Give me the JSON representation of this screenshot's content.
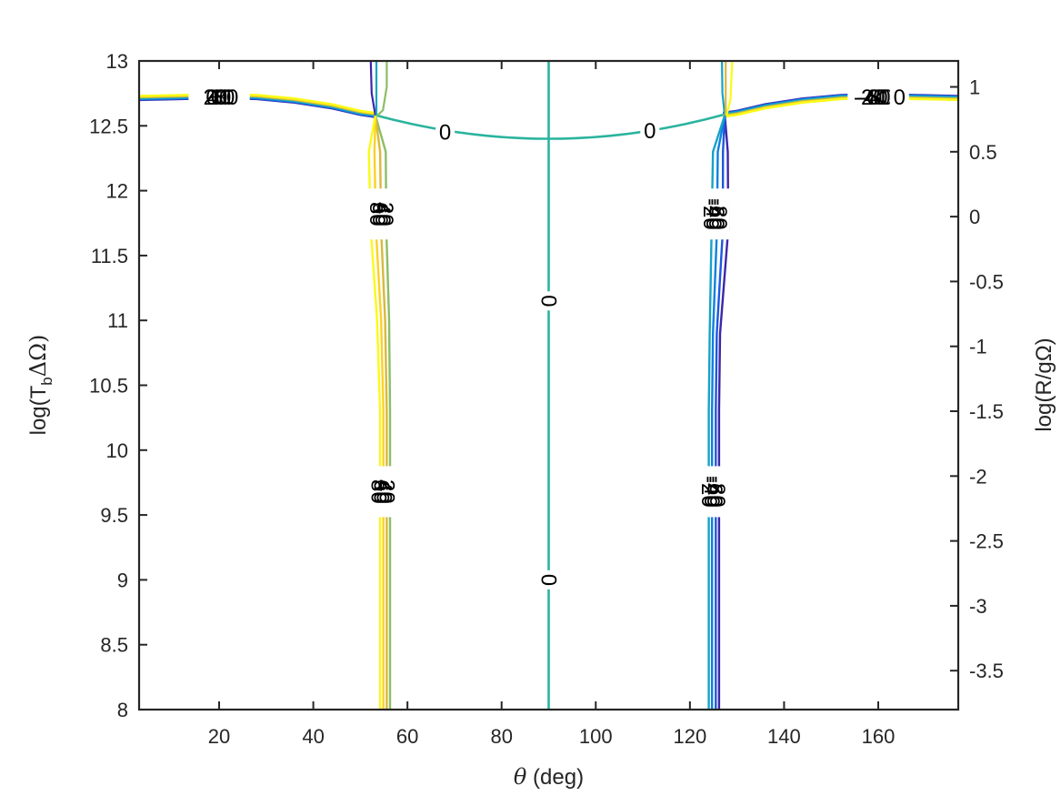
{
  "chart_data": {
    "type": "contour",
    "xlabel_symbol": "θ",
    "xlabel_rest": " (deg)",
    "ylabel_left": "log(TbΔΩ)",
    "ylabel_left_parts": {
      "pre": "log(T",
      "sub": "b",
      "post": "ΔΩ)"
    },
    "ylabel_right": "log(R/gΩ)",
    "xlim": [
      3,
      177
    ],
    "ylim": [
      8,
      13
    ],
    "ylim_right": [
      -3.8,
      1.2
    ],
    "xticks": [
      20,
      40,
      60,
      80,
      100,
      120,
      140,
      160
    ],
    "yticks": [
      8,
      8.5,
      9,
      9.5,
      10,
      10.5,
      11,
      11.5,
      12,
      12.5,
      13
    ],
    "yticks_right": [
      -3.5,
      -3,
      -2.5,
      -2,
      -1.5,
      -1,
      -0.5,
      0,
      0.5,
      1
    ],
    "xtick_labels": [
      "20",
      "40",
      "60",
      "80",
      "100",
      "120",
      "140",
      "160"
    ],
    "ytick_labels": [
      "8",
      "8.5",
      "9",
      "9.5",
      "10",
      "10.5",
      "11",
      "11.5",
      "12",
      "12.5",
      "13"
    ],
    "ytick_right_labels": [
      "-3.5",
      "-3",
      "-2.5",
      "-2",
      "-1.5",
      "-1",
      "-0.5",
      "0",
      "0.5",
      "1"
    ],
    "contour_levels": [
      -80,
      -60,
      -40,
      -20,
      0,
      20,
      40,
      60,
      80
    ],
    "level_colors": [
      "#3e26a8",
      "#1b58e1",
      "#0e80e0",
      "#17a3c6",
      "#2ab49e",
      "#8bbe66",
      "#d8b93b",
      "#fbd126",
      "#f9fb15"
    ],
    "contour_lines": [
      {
        "level": 0,
        "description": "vertical line at theta=90",
        "x": [
          90,
          90
        ],
        "y": [
          8,
          13
        ]
      },
      {
        "level": 0,
        "description": "dip between lobes",
        "x": [
          53,
          60,
          70,
          80,
          90,
          100,
          110,
          120,
          127
        ],
        "y": [
          12.58,
          12.52,
          12.46,
          12.42,
          12.4,
          12.42,
          12.46,
          12.52,
          12.58
        ]
      },
      {
        "level": "±20..±80",
        "description": "near-horizontal band at top",
        "x": [
          3,
          20,
          30,
          40,
          52
        ],
        "y": [
          12.72,
          12.73,
          12.72,
          12.66,
          12.58
        ]
      },
      {
        "level": "±20..±80",
        "description": "near-horizontal band at top (right)",
        "x": [
          128,
          140,
          150,
          160,
          177
        ],
        "y": [
          12.58,
          12.66,
          12.72,
          12.73,
          12.72
        ]
      },
      {
        "level": "20..80",
        "description": "near-vertical lines around theta≈54°",
        "x_range": [
          53,
          56.5
        ]
      },
      {
        "level": "-20..-80",
        "description": "near-vertical lines around theta≈125°",
        "x_range": [
          123.5,
          128
        ]
      }
    ],
    "contour_labels": [
      {
        "text": "0",
        "x": 68,
        "y": 12.45
      },
      {
        "text": "0",
        "x": 111.5,
        "y": 12.46
      },
      {
        "text": "0",
        "x": 90,
        "y": 11.15,
        "rotate": 90
      },
      {
        "text": "0",
        "x": 90,
        "y": 9.0,
        "rotate": 90
      },
      {
        "text": "0",
        "x": 20,
        "y": 12.7
      },
      {
        "text": "0",
        "x": 164,
        "y": 12.7
      },
      {
        "text": "20",
        "x": 20,
        "y": 12.7
      },
      {
        "text": "40",
        "x": 20,
        "y": 12.7
      },
      {
        "text": "60",
        "x": 20,
        "y": 12.7
      },
      {
        "text": "80",
        "x": 20,
        "y": 12.7
      },
      {
        "text": "-20",
        "x": 159,
        "y": 12.7
      },
      {
        "text": "-40",
        "x": 159,
        "y": 12.7
      },
      {
        "text": "-60",
        "x": 159,
        "y": 12.7
      },
      {
        "text": "-80",
        "x": 159,
        "y": 12.7
      }
    ]
  }
}
